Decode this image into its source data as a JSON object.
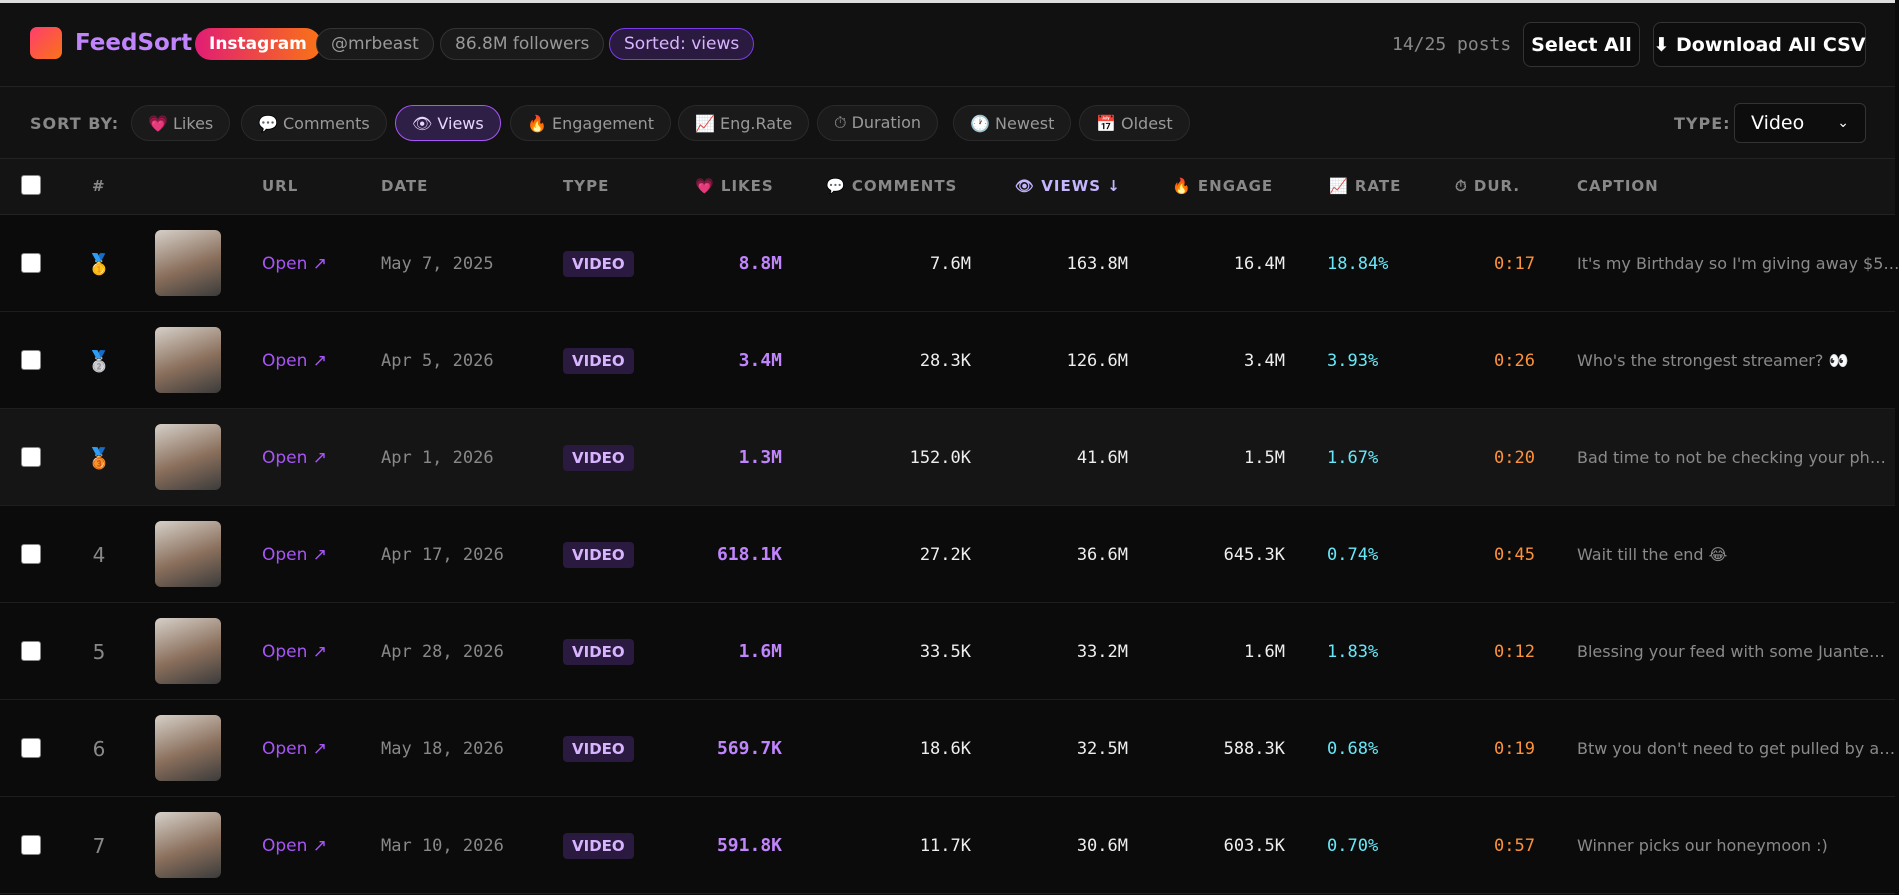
{
  "header": {
    "brand": "FeedSort",
    "platform": "Instagram",
    "handle": "@mrbeast",
    "followers": "86.8M followers",
    "sorted": "Sorted: views",
    "post_count": "14/25 posts",
    "select_all": "Select All",
    "download": "⬇ Download All CSV"
  },
  "sort_bar": {
    "label": "SORT BY:",
    "buttons": [
      "💗 Likes",
      "💬 Comments",
      "👁 Views",
      "🔥 Engagement",
      "📈 Eng.Rate",
      "⏱ Duration",
      "🕐 Newest",
      "📅 Oldest"
    ],
    "active": 2,
    "type_label": "TYPE:",
    "type_value": "Video"
  },
  "table": {
    "headers": {
      "rank": "#",
      "url": "URL",
      "date": "DATE",
      "type": "TYPE",
      "likes": "💗 LIKES",
      "comments": "💬 COMMENTS",
      "views": "👁 VIEWS ↓",
      "engage": "🔥 ENGAGE",
      "rate": "📈 RATE",
      "dur": "⏱ DUR.",
      "caption": "CAPTION"
    },
    "rows": [
      {
        "rank": "🥇",
        "url": "Open ↗",
        "date": "May 7, 2025",
        "type": "VIDEO",
        "likes": "8.8M",
        "comments": "7.6M",
        "views": "163.8M",
        "engage": "16.4M",
        "rate": "18.84%",
        "dur": "0:17",
        "caption": "It's my Birthday so I'm giving away $5…"
      },
      {
        "rank": "🥈",
        "url": "Open ↗",
        "date": "Apr 5, 2026",
        "type": "VIDEO",
        "likes": "3.4M",
        "comments": "28.3K",
        "views": "126.6M",
        "engage": "3.4M",
        "rate": "3.93%",
        "dur": "0:26",
        "caption": "Who's the strongest streamer? 👀"
      },
      {
        "rank": "🥉",
        "url": "Open ↗",
        "date": "Apr 1, 2026",
        "type": "VIDEO",
        "likes": "1.3M",
        "comments": "152.0K",
        "views": "41.6M",
        "engage": "1.5M",
        "rate": "1.67%",
        "dur": "0:20",
        "caption": "Bad time to not be checking your ph…"
      },
      {
        "rank": "4",
        "url": "Open ↗",
        "date": "Apr 17, 2026",
        "type": "VIDEO",
        "likes": "618.1K",
        "comments": "27.2K",
        "views": "36.6M",
        "engage": "645.3K",
        "rate": "0.74%",
        "dur": "0:45",
        "caption": "Wait till the end 😂"
      },
      {
        "rank": "5",
        "url": "Open ↗",
        "date": "Apr 28, 2026",
        "type": "VIDEO",
        "likes": "1.6M",
        "comments": "33.5K",
        "views": "33.2M",
        "engage": "1.6M",
        "rate": "1.83%",
        "dur": "0:12",
        "caption": "Blessing your feed with some Juante…"
      },
      {
        "rank": "6",
        "url": "Open ↗",
        "date": "May 18, 2026",
        "type": "VIDEO",
        "likes": "569.7K",
        "comments": "18.6K",
        "views": "32.5M",
        "engage": "588.3K",
        "rate": "0.68%",
        "dur": "0:19",
        "caption": "Btw you don't need to get pulled by a…"
      },
      {
        "rank": "7",
        "url": "Open ↗",
        "date": "Mar 10, 2026",
        "type": "VIDEO",
        "likes": "591.8K",
        "comments": "11.7K",
        "views": "30.6M",
        "engage": "603.5K",
        "rate": "0.70%",
        "dur": "0:57",
        "caption": "Winner picks our honeymoon :)"
      }
    ]
  }
}
